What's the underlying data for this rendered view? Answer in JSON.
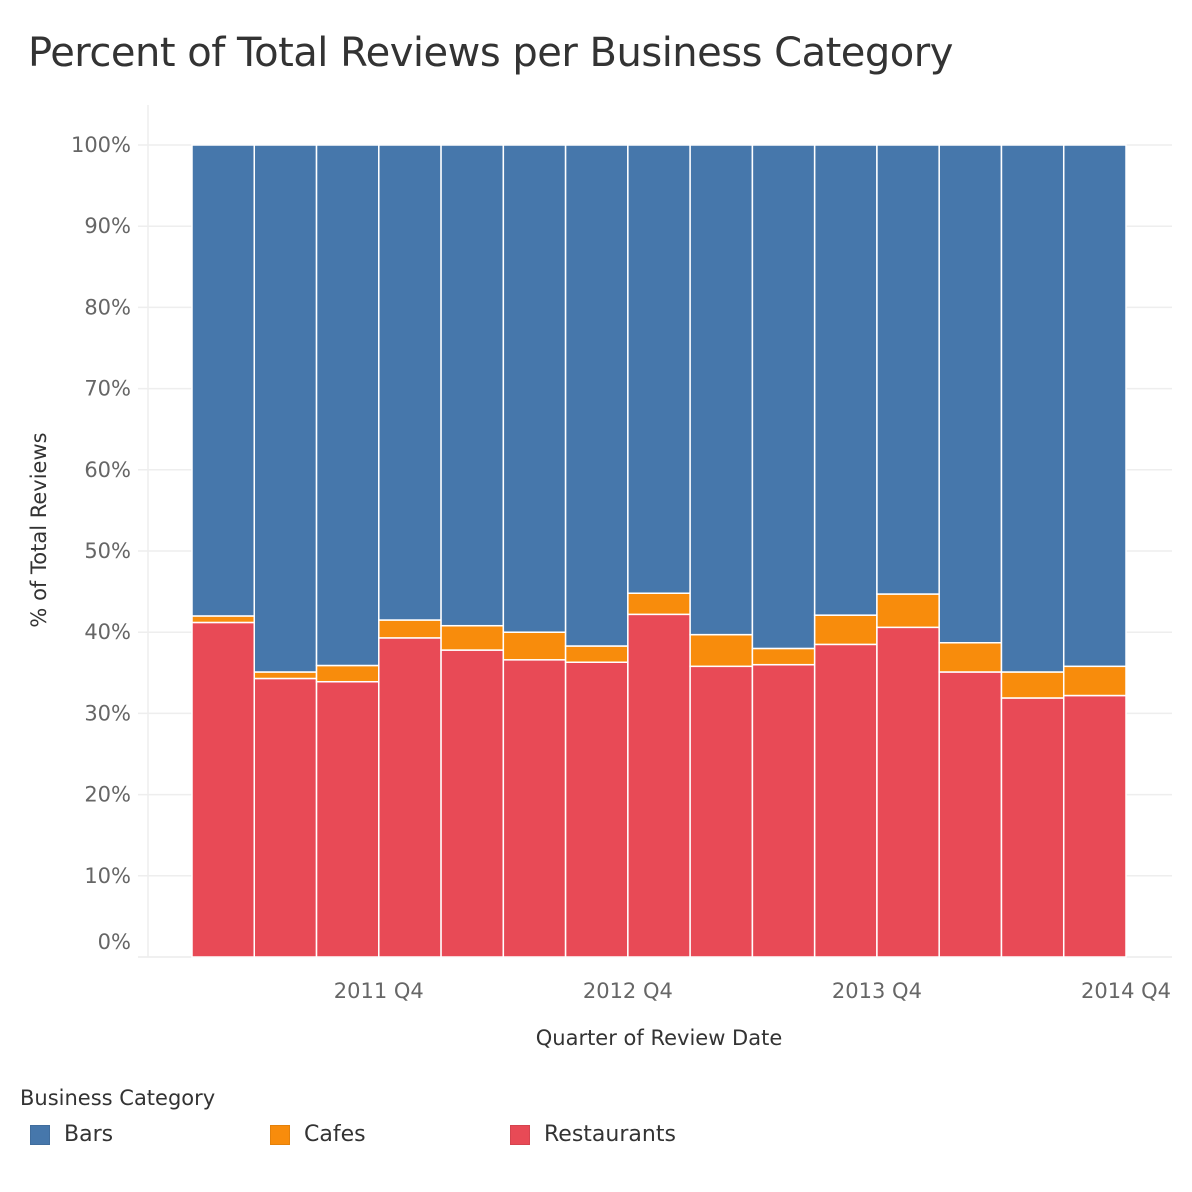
{
  "chart_data": {
    "type": "bar",
    "stacked": true,
    "title": "Percent of Total Reviews per Business Category",
    "xlabel": "Quarter of Review Date",
    "ylabel": "% of Total Reviews",
    "ylim": [
      0,
      100
    ],
    "y_ticks": [
      "0%",
      "10%",
      "20%",
      "30%",
      "40%",
      "50%",
      "60%",
      "70%",
      "80%",
      "90%",
      "100%"
    ],
    "x_tick_labels": [
      {
        "category_index": 3,
        "label": "2011 Q4"
      },
      {
        "category_index": 7,
        "label": "2012 Q4"
      },
      {
        "category_index": 11,
        "label": "2013 Q4"
      },
      {
        "category_index": 15,
        "label": "2014 Q4"
      }
    ],
    "categories": [
      "2011 Q1",
      "2011 Q2",
      "2011 Q3",
      "2011 Q4",
      "2012 Q1",
      "2012 Q2",
      "2012 Q3",
      "2012 Q4",
      "2013 Q1",
      "2013 Q2",
      "2013 Q3",
      "2013 Q4",
      "2014 Q1",
      "2014 Q2",
      "2014 Q3"
    ],
    "series": [
      {
        "name": "Restaurants",
        "color": "#E84A56",
        "values": [
          41.2,
          34.3,
          33.9,
          39.3,
          37.8,
          36.6,
          36.3,
          42.2,
          35.8,
          36.0,
          38.5,
          40.6,
          35.1,
          31.9,
          32.2
        ]
      },
      {
        "name": "Cafes",
        "color": "#F88C0C",
        "values": [
          0.8,
          0.8,
          2.0,
          2.2,
          3.0,
          3.4,
          2.0,
          2.6,
          3.9,
          2.0,
          3.6,
          4.1,
          3.6,
          3.2,
          3.6
        ]
      },
      {
        "name": "Bars",
        "color": "#4677AB",
        "values": [
          58.0,
          64.9,
          64.1,
          58.5,
          59.2,
          60.0,
          61.7,
          55.2,
          60.3,
          62.0,
          57.9,
          55.3,
          61.3,
          64.9,
          64.2
        ]
      }
    ],
    "legend_title": "Business Category",
    "legend": [
      {
        "name": "Bars",
        "color": "#4677AB"
      },
      {
        "name": "Cafes",
        "color": "#F88C0C"
      },
      {
        "name": "Restaurants",
        "color": "#E84A56"
      }
    ],
    "legend_position": "bottom-left",
    "grid": true
  }
}
